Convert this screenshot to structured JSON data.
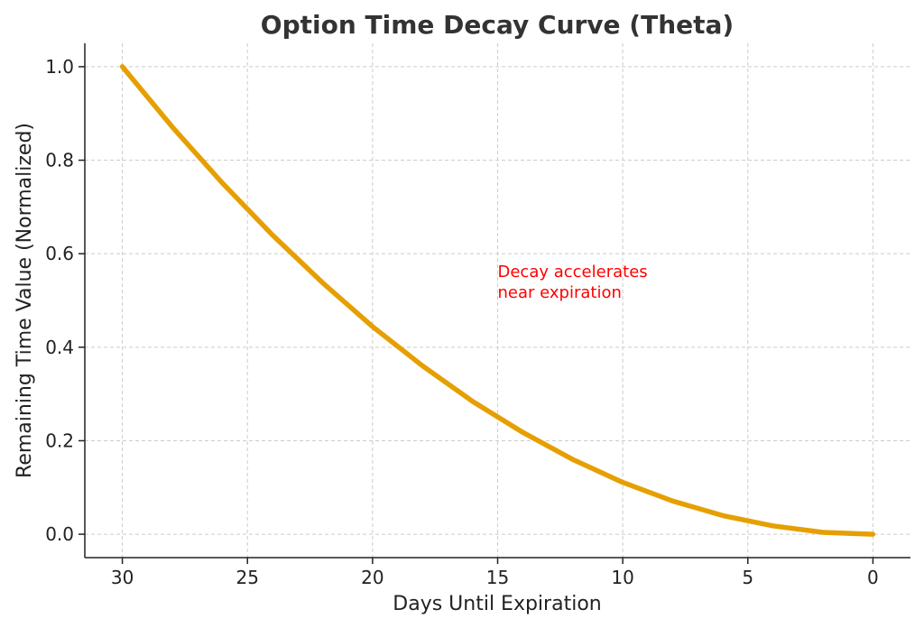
{
  "chart_data": {
    "type": "line",
    "title": "Option Time Decay Curve (Theta)",
    "xlabel": "Days Until Expiration",
    "ylabel": "Remaining Time Value (Normalized)",
    "xlim": [
      31.5,
      -1.5
    ],
    "ylim": [
      -0.05,
      1.05
    ],
    "x_reversed": true,
    "grid": true,
    "xticks": [
      30,
      25,
      20,
      15,
      10,
      5,
      0
    ],
    "yticks": [
      0.0,
      0.2,
      0.4,
      0.6,
      0.8,
      1.0
    ],
    "ytick_labels": [
      "0.0",
      "0.2",
      "0.4",
      "0.6",
      "0.8",
      "1.0"
    ],
    "series": [
      {
        "color": "#E69F00",
        "x": [
          30,
          28,
          26,
          24,
          22,
          20,
          18,
          16,
          14,
          12,
          10,
          8,
          6,
          4,
          2,
          0
        ],
        "y": [
          1.0,
          0.871,
          0.751,
          0.64,
          0.538,
          0.444,
          0.36,
          0.284,
          0.218,
          0.16,
          0.111,
          0.071,
          0.04,
          0.018,
          0.004,
          0.0
        ]
      }
    ],
    "annotations": [
      {
        "lines": [
          "Decay accelerates",
          "near expiration"
        ],
        "x": 15,
        "y": 0.55,
        "color": "#FF0000"
      }
    ]
  }
}
